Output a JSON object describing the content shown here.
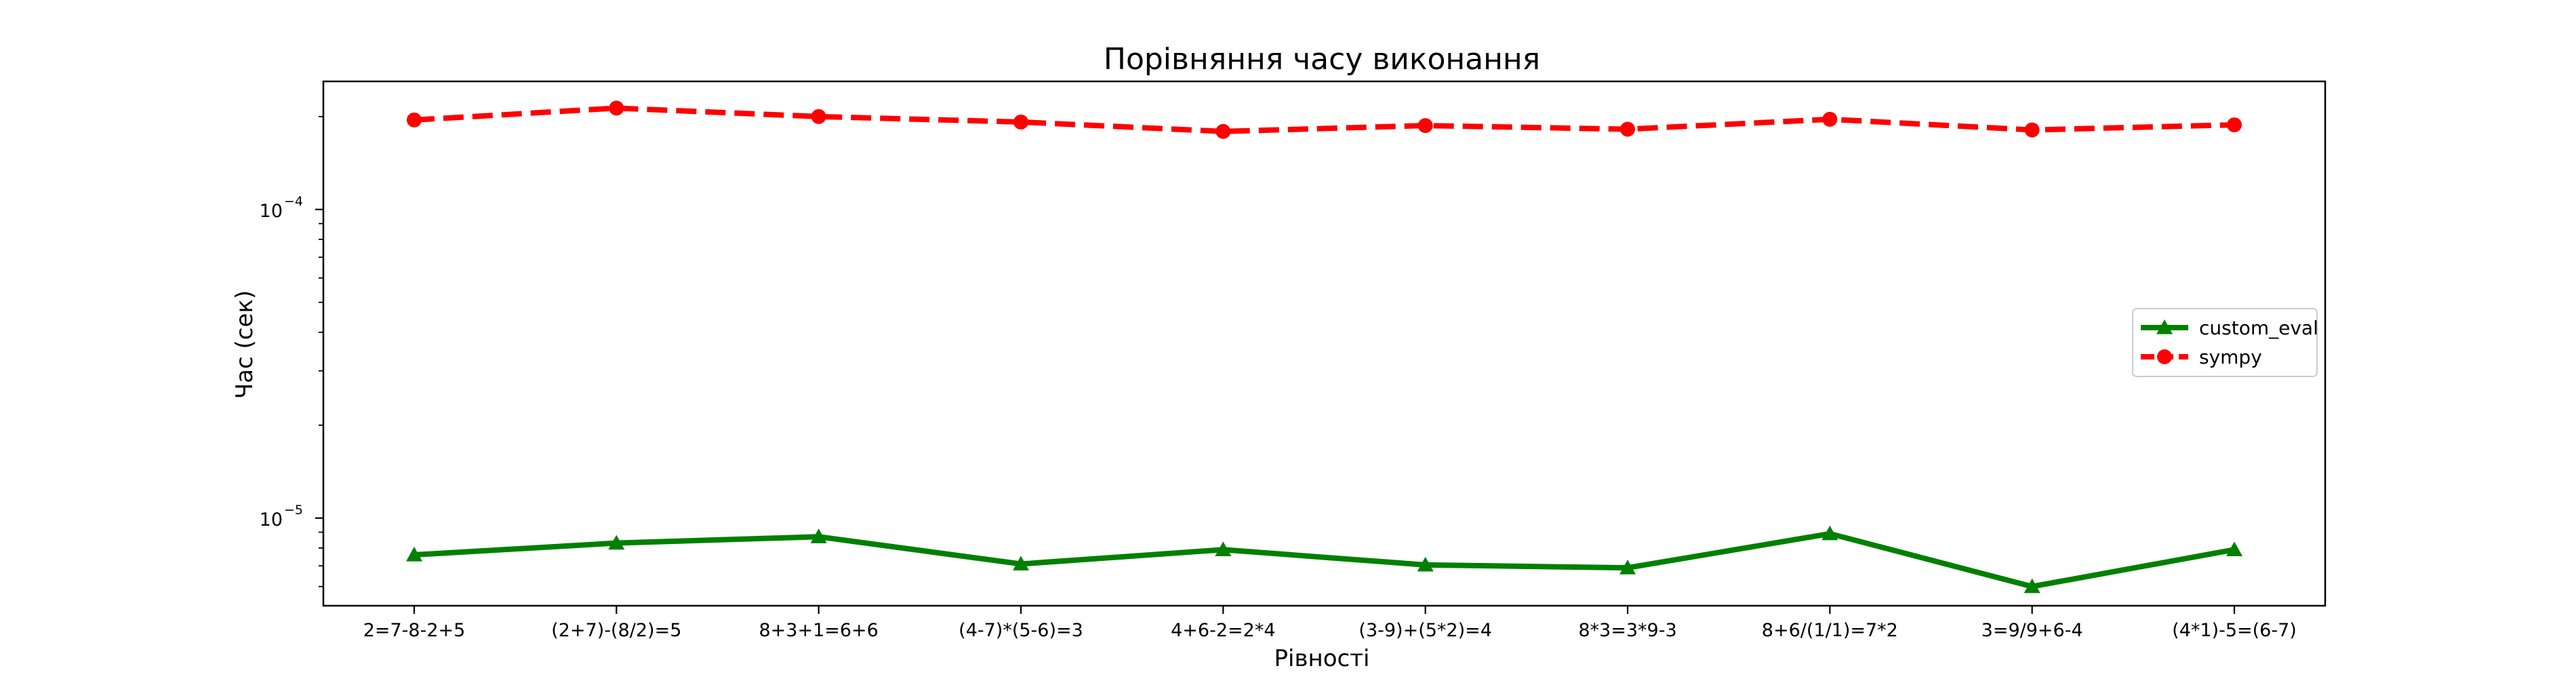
{
  "chart_data": {
    "type": "line",
    "title": "Порівняння часу виконання",
    "xlabel": "Рівності",
    "ylabel": "Час (сек)",
    "yscale": "log",
    "ylim": [
      5.2e-06,
      0.00026
    ],
    "ytick_labels": [
      {
        "value": 1e-05,
        "base": "10",
        "exp": "−5"
      },
      {
        "value": 0.0001,
        "base": "10",
        "exp": "−4"
      }
    ],
    "categories": [
      "2=7-8-2+5",
      "(2+7)-(8/2)=5",
      "8+3+1=6+6",
      "(4-7)*(5-6)=3",
      "4+6-2=2*4",
      "(3-9)+(5*2)=4",
      "8*3=3*9-3",
      "8+6/(1/1)=7*2",
      "3=9/9+6-4",
      "(4*1)-5=(6-7)"
    ],
    "series": [
      {
        "name": "custom_eval",
        "color": "#008000",
        "linestyle": "solid",
        "marker": "triangle",
        "values": [
          7.6e-06,
          8.3e-06,
          8.7e-06,
          7.1e-06,
          7.9e-06,
          7.05e-06,
          6.9e-06,
          8.9e-06,
          6e-06,
          7.9e-06
        ]
      },
      {
        "name": "sympy",
        "color": "#ff0000",
        "linestyle": "dashed",
        "marker": "circle",
        "values": [
          0.000195,
          0.000213,
          0.0002,
          0.000192,
          0.000179,
          0.000187,
          0.000182,
          0.000196,
          0.000181,
          0.000188
        ]
      }
    ],
    "legend_position": "center-right",
    "grid": false
  }
}
